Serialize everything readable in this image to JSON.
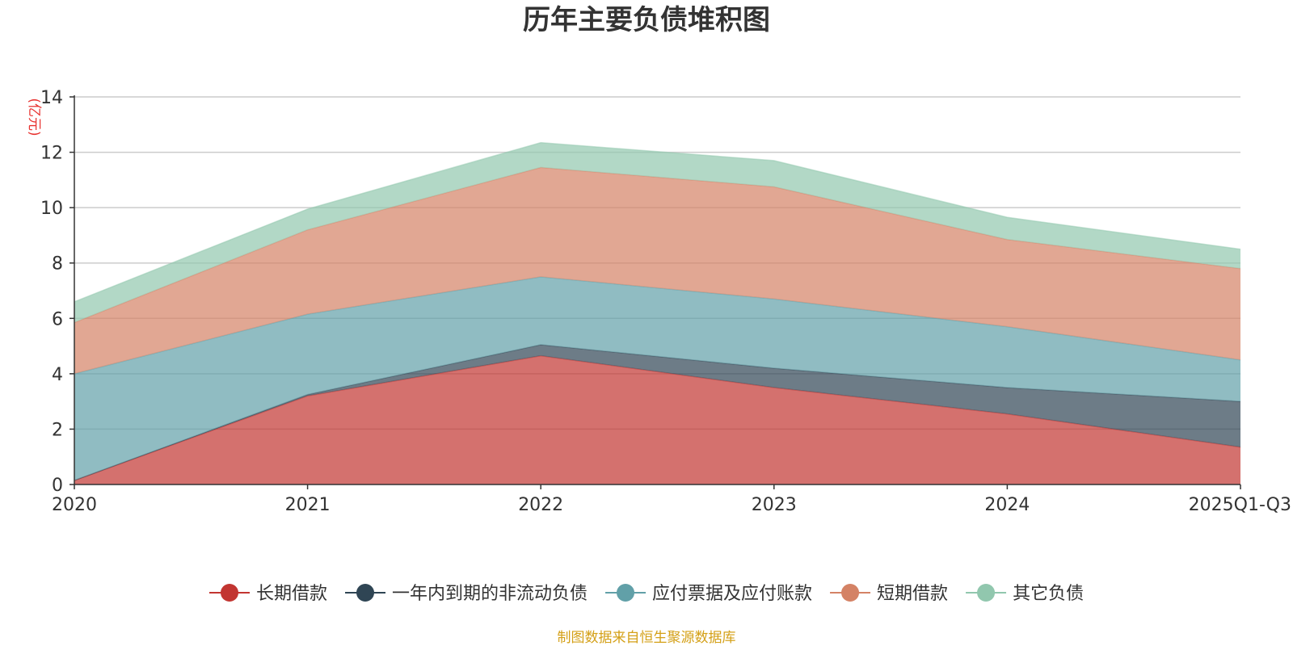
{
  "chart_data": {
    "type": "area",
    "stacked": true,
    "title": "历年主要负债堆积图",
    "unit_label": "(亿元)",
    "categories": [
      "2020",
      "2021",
      "2022",
      "2023",
      "2024",
      "2025Q1-Q3"
    ],
    "ylim": [
      0,
      14
    ],
    "yticks": [
      0,
      2,
      4,
      6,
      8,
      10,
      12,
      14
    ],
    "grid": true,
    "legend_position": "bottom",
    "series": [
      {
        "name": "长期借款",
        "color": "#c23531",
        "values": [
          0.15,
          3.2,
          4.65,
          3.5,
          2.55,
          1.35
        ]
      },
      {
        "name": "一年内到期的非流动负债",
        "color": "#2f4554",
        "values": [
          0.0,
          0.05,
          0.4,
          0.7,
          0.95,
          1.65
        ]
      },
      {
        "name": "应付票据及应付账款",
        "color": "#61a0a8",
        "values": [
          3.85,
          2.9,
          2.45,
          2.5,
          2.2,
          1.5
        ]
      },
      {
        "name": "短期借款",
        "color": "#d48265",
        "values": [
          1.85,
          3.05,
          3.95,
          4.05,
          3.15,
          3.3
        ]
      },
      {
        "name": "其它负债",
        "color": "#91c7ae",
        "values": [
          0.75,
          0.75,
          0.9,
          0.95,
          0.8,
          0.7
        ]
      }
    ],
    "source_note": "制图数据来自恒生聚源数据库"
  }
}
